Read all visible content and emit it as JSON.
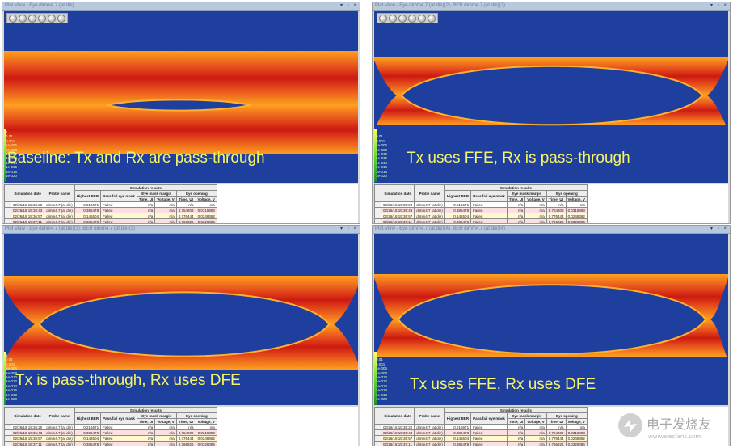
{
  "panels": [
    {
      "title": "Plot View - Eye dimm4.7 (at die)",
      "caption": "Baseline: Tx and Rx are pass-through",
      "toolbar": true
    },
    {
      "title": "Plot View - Eye dimm4.7 (at die)(2), BER dimm4.7 (at die)(2)",
      "caption": "Tx uses FFE, Rx is pass-through",
      "toolbar": false
    },
    {
      "title": "Plot View - Eye dimm4.7 (at die)(3), BER dimm4.7 (at die)(3)",
      "caption": "Tx is pass-through, Rx uses DFE",
      "toolbar": false
    },
    {
      "title": "Plot View - Eye dimm4.7 (at die)(4), BER dimm4.7 (at die)(4)",
      "caption": "Tx uses FFE, Rx uses DFE",
      "toolbar": false
    }
  ],
  "ber_scale": [
    "1",
    "0.01",
    "0.001",
    "1e-006",
    "1e-008",
    "1e-010",
    "1e-012",
    "1e-014",
    "1e-016",
    "1e-018",
    "1e-020"
  ],
  "table": {
    "group_header": "Simulation results",
    "col_date": "Simulation date",
    "col_probe": "Probe name",
    "col_ber": "Highest BER",
    "col_pass": "Pass/fail eye mask",
    "col_margin": "Eye mask margin",
    "col_opening": "Eye opening",
    "sub_time": "Time, UI",
    "sub_voltage": "Voltage, V",
    "rows": [
      {
        "date": "02/26/18 15:36:20",
        "probe": "dimm4.7 (at die)",
        "ber": "0.216671",
        "pass": "Failed",
        "m_time": "n/a",
        "m_volt": "n/a",
        "o_time": "n/a",
        "o_volt": "n/a"
      },
      {
        "date": "02/26/18 15:36:43",
        "probe": "dimm4.7 (at die)",
        "ber": "0.385478",
        "pass": "Failed",
        "m_time": "n/a",
        "m_volt": "n/a",
        "o_time": "0.754809",
        "o_volt": "0.0315893"
      },
      {
        "date": "02/26/18 15:36:57",
        "probe": "dimm4.7 (at die)",
        "ber": "0.145504",
        "pass": "Failed",
        "m_time": "n/a",
        "m_volt": "n/a",
        "o_time": "0.776444",
        "o_volt": "0.0248362"
      },
      {
        "date": "02/26/18 15:37:11",
        "probe": "dimm4.7 (at die)",
        "ber": "0.385478",
        "pass": "Failed",
        "m_time": "n/a",
        "m_volt": "n/a",
        "o_time": "0.766826",
        "o_volt": "0.0326086"
      }
    ]
  },
  "watermark": {
    "brand": "电子发烧友",
    "site": "www.elecfans.com"
  },
  "colors": {
    "background": "#1f3f9f",
    "eye_edge": "#ffa020",
    "eye_core": "#cc1a10",
    "caption": "#f4f466"
  },
  "icons": [
    "zoom-in-icon",
    "zoom-out-icon",
    "pan-icon",
    "reset-icon",
    "fit-icon",
    "camera-icon"
  ]
}
